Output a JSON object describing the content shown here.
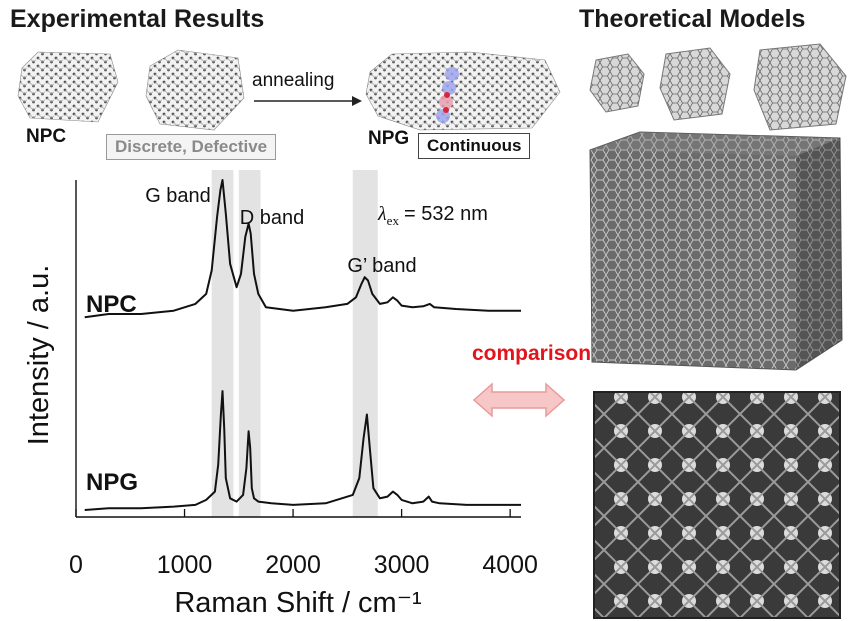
{
  "headings": {
    "left": "Experimental Results",
    "right": "Theoretical Models"
  },
  "schematic": {
    "npc": "NPC",
    "npg": "NPG",
    "arrow_label": "annealing",
    "box_left": "Discrete, Defective",
    "box_right": "Continuous"
  },
  "comparison_label": "comparison",
  "colors": {
    "accent_red": "#e3141b",
    "arrow_fill": "#f7c7c7",
    "band_shade": "#e3e3e3",
    "trace": "#111111"
  },
  "chart_data": {
    "type": "line",
    "title": "",
    "xlabel": "Raman Shift / cm⁻¹",
    "ylabel": "Intensity / a.u.",
    "xlim": [
      0,
      4100
    ],
    "xticks": [
      0,
      1000,
      2000,
      3000,
      4000
    ],
    "ylim": [
      0,
      100
    ],
    "band_labels": [
      "G band",
      "D band",
      "G’ band"
    ],
    "bands": [
      {
        "label": "G band",
        "x0": 1250,
        "x1": 1450
      },
      {
        "label": "D band",
        "x0": 1500,
        "x1": 1700
      },
      {
        "label": "G’ band",
        "x0": 2550,
        "x1": 2780
      }
    ],
    "annotation": {
      "symbol": "λ",
      "subscript": "ex",
      "text": "= 532 nm"
    },
    "series": [
      {
        "name": "NPC",
        "x": [
          80,
          300,
          600,
          900,
          1100,
          1200,
          1250,
          1300,
          1330,
          1350,
          1380,
          1420,
          1480,
          1520,
          1560,
          1590,
          1610,
          1640,
          1680,
          1750,
          2000,
          2300,
          2500,
          2580,
          2630,
          2660,
          2690,
          2730,
          2800,
          2870,
          2920,
          2960,
          3000,
          3100,
          3200,
          3260,
          3300,
          3500,
          3800,
          4100
        ],
        "y": [
          59,
          60,
          60,
          61,
          63,
          66,
          73,
          89,
          97,
          100,
          90,
          75,
          68,
          72,
          83,
          87,
          84,
          72,
          66,
          62,
          61,
          62,
          63,
          65,
          69,
          71,
          70,
          66,
          63,
          63.5,
          65,
          64,
          62.5,
          62,
          62.3,
          63,
          62,
          61.5,
          61,
          61
        ]
      },
      {
        "name": "NPG",
        "x": [
          80,
          300,
          600,
          900,
          1100,
          1200,
          1280,
          1310,
          1335,
          1350,
          1365,
          1380,
          1420,
          1480,
          1540,
          1570,
          1590,
          1605,
          1620,
          1640,
          1680,
          1800,
          2000,
          2300,
          2450,
          2550,
          2610,
          2650,
          2680,
          2710,
          2740,
          2800,
          2870,
          2920,
          2960,
          3000,
          3100,
          3200,
          3250,
          3280,
          3350,
          3600,
          3900,
          4100
        ],
        "y": [
          1.5,
          2,
          2,
          2.5,
          3,
          4.5,
          7,
          15,
          30,
          37,
          26,
          11,
          5,
          4,
          6,
          14,
          25,
          20,
          8,
          5,
          4,
          3.5,
          3,
          3.5,
          5,
          6,
          11,
          23,
          30,
          19,
          8,
          5,
          5.5,
          7,
          6,
          4.5,
          3.5,
          4,
          5.5,
          4,
          3.5,
          3,
          3,
          3
        ]
      }
    ]
  }
}
